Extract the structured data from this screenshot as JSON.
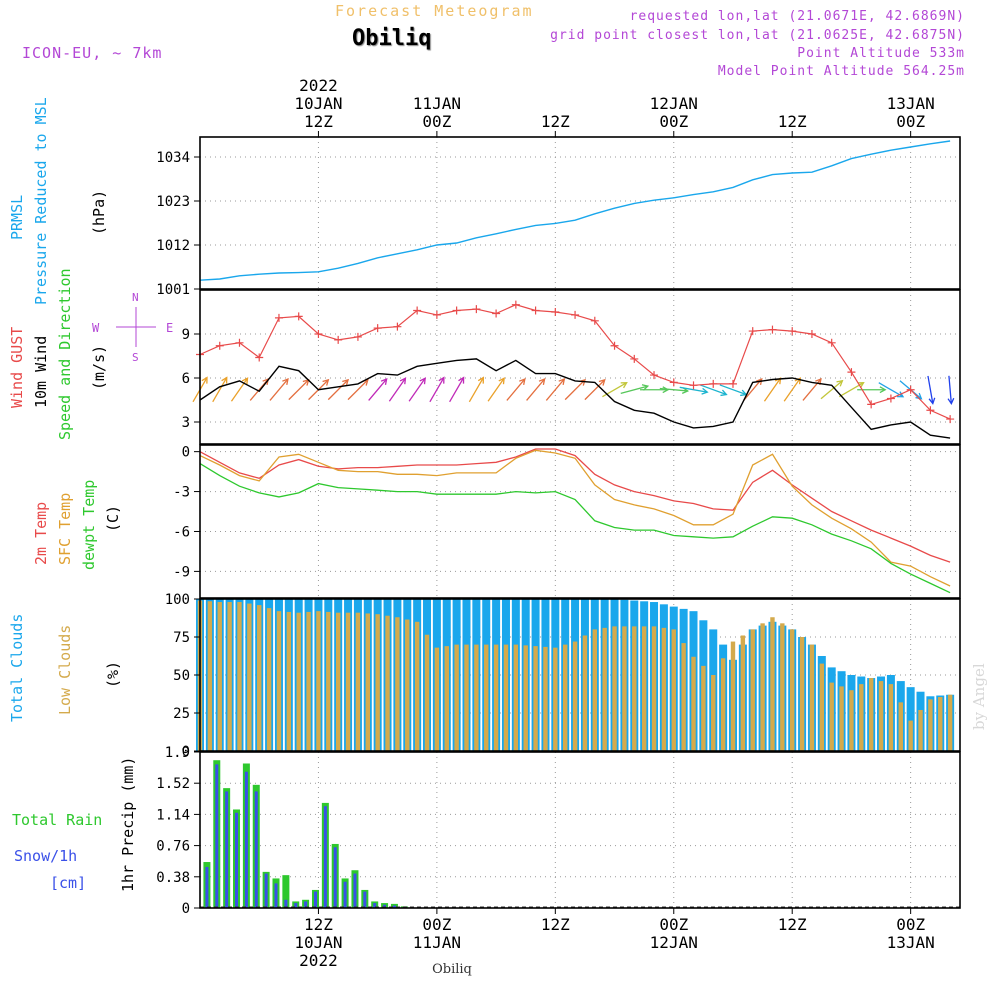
{
  "header": {
    "title": "Forecast Meteogram",
    "location": "Obiliq",
    "model": "ICON-EU, ~ 7km",
    "requested": "requested lon,lat (21.0671E, 42.6869N)",
    "gridpoint": "grid point closest lon,lat (21.0625E, 42.6875N)",
    "point_altitude": "Point Altitude 533m",
    "model_altitude": "Model Point Altitude 564.25m",
    "credit": "by Angel",
    "footer_location": "Obiliq"
  },
  "time_axis": {
    "top_year": "2022",
    "bottom_year": "2022",
    "ticks": [
      {
        "hour": 12,
        "label": "12Z",
        "date": "10JAN"
      },
      {
        "hour": 24,
        "label": "00Z",
        "date": "11JAN"
      },
      {
        "hour": 36,
        "label": "12Z",
        "date": ""
      },
      {
        "hour": 48,
        "label": "00Z",
        "date": "12JAN"
      },
      {
        "hour": 60,
        "label": "12Z",
        "date": ""
      },
      {
        "hour": 72,
        "label": "00Z",
        "date": "13JAN"
      }
    ],
    "range_hours": [
      0,
      77
    ]
  },
  "chart_data": [
    {
      "type": "line",
      "panel": "pressure",
      "ylabel_lines": [
        "PRMSL",
        "Pressure Reduced to MSL"
      ],
      "unit": "(hPa)",
      "ylim": [
        1001,
        1039
      ],
      "yticks": [
        1001,
        1012,
        1023,
        1034
      ],
      "x": [
        0,
        2,
        4,
        6,
        8,
        10,
        12,
        14,
        16,
        18,
        20,
        22,
        24,
        26,
        28,
        30,
        32,
        34,
        36,
        38,
        40,
        42,
        44,
        46,
        48,
        50,
        52,
        54,
        56,
        58,
        60,
        62,
        64,
        66,
        68,
        70,
        72,
        74,
        76
      ],
      "series": [
        {
          "color": "#1aa7ec",
          "values": [
            1003.2,
            1003.5,
            1004.3,
            1004.7,
            1005.0,
            1005.1,
            1005.3,
            1006.2,
            1007.4,
            1008.8,
            1009.8,
            1010.8,
            1012.0,
            1012.5,
            1013.8,
            1014.8,
            1015.9,
            1016.9,
            1017.4,
            1018.2,
            1019.8,
            1021.2,
            1022.4,
            1023.2,
            1023.8,
            1024.6,
            1025.3,
            1026.4,
            1028.3,
            1029.6,
            1030.0,
            1030.2,
            1031.8,
            1033.6,
            1034.7,
            1035.7,
            1036.5,
            1037.3,
            1038.0
          ]
        }
      ]
    },
    {
      "type": "line",
      "panel": "wind",
      "ylabel_lines": [
        "Wind GUST",
        "10m Wind",
        "Speed and Direction"
      ],
      "unit": "(m/s)",
      "compass": [
        "N",
        "W",
        "E",
        "S"
      ],
      "ylim": [
        1.5,
        12
      ],
      "yticks": [
        3,
        6,
        9
      ],
      "x": [
        0,
        2,
        4,
        6,
        8,
        10,
        12,
        14,
        16,
        18,
        20,
        22,
        24,
        26,
        28,
        30,
        32,
        34,
        36,
        38,
        40,
        42,
        44,
        46,
        48,
        50,
        52,
        54,
        56,
        58,
        60,
        62,
        64,
        66,
        68,
        70,
        72,
        74,
        76
      ],
      "series": [
        {
          "name": "Wind GUST",
          "color": "#e84a4a",
          "values": [
            7.6,
            8.2,
            8.4,
            7.4,
            10.1,
            10.2,
            9.0,
            8.6,
            8.8,
            9.4,
            9.5,
            10.6,
            10.3,
            10.6,
            10.7,
            10.4,
            11.0,
            10.6,
            10.5,
            10.3,
            9.9,
            8.2,
            7.3,
            6.2,
            5.7,
            5.5,
            5.6,
            5.6,
            9.2,
            9.3,
            9.2,
            9.0,
            8.4,
            6.4,
            4.2,
            4.6,
            5.2,
            3.8,
            3.2
          ]
        },
        {
          "name": "10m Wind",
          "color": "#000000",
          "values": [
            4.5,
            5.4,
            5.8,
            5.1,
            6.8,
            6.5,
            5.2,
            5.4,
            5.6,
            6.3,
            6.2,
            6.8,
            7.0,
            7.2,
            7.3,
            6.5,
            7.2,
            6.3,
            6.3,
            5.8,
            5.7,
            4.4,
            3.8,
            3.6,
            3.0,
            2.6,
            2.7,
            3.0,
            5.7,
            5.9,
            6.0,
            5.7,
            5.5,
            4.0,
            2.5,
            2.8,
            3.0,
            2.1,
            1.9
          ]
        }
      ],
      "wind_dir_deg": [
        30,
        30,
        35,
        40,
        40,
        45,
        45,
        45,
        45,
        40,
        35,
        35,
        30,
        30,
        30,
        35,
        40,
        40,
        40,
        45,
        45,
        60,
        75,
        90,
        95,
        100,
        110,
        110,
        40,
        35,
        35,
        40,
        50,
        60,
        90,
        120,
        130,
        170,
        175
      ]
    },
    {
      "type": "line",
      "panel": "temperature",
      "ylabel_lines": [
        "2m Temp",
        "SFC Temp",
        "dewpt Temp"
      ],
      "unit": "(C)",
      "ylim": [
        -11,
        0.5
      ],
      "yticks": [
        0,
        -3,
        -6,
        -9
      ],
      "x": [
        0,
        2,
        4,
        6,
        8,
        10,
        12,
        14,
        16,
        18,
        20,
        22,
        24,
        26,
        28,
        30,
        32,
        34,
        36,
        38,
        40,
        42,
        44,
        46,
        48,
        50,
        52,
        54,
        56,
        58,
        60,
        62,
        64,
        66,
        68,
        70,
        72,
        74,
        76
      ],
      "series": [
        {
          "name": "2m Temp",
          "color": "#e84a4a",
          "values": [
            0.0,
            -0.8,
            -1.6,
            -2.0,
            -1.0,
            -0.6,
            -1.1,
            -1.3,
            -1.2,
            -1.2,
            -1.1,
            -1.0,
            -1.0,
            -1.0,
            -0.9,
            -0.8,
            -0.4,
            0.2,
            0.2,
            -0.3,
            -1.7,
            -2.5,
            -3.0,
            -3.3,
            -3.7,
            -3.9,
            -4.3,
            -4.4,
            -2.3,
            -1.4,
            -2.5,
            -3.5,
            -4.5,
            -5.2,
            -5.9,
            -6.5,
            -7.1,
            -7.8,
            -8.3
          ]
        },
        {
          "name": "SFC Temp",
          "color": "#e0a030",
          "values": [
            -0.3,
            -1.0,
            -1.8,
            -2.2,
            -0.4,
            -0.2,
            -0.8,
            -1.4,
            -1.5,
            -1.5,
            -1.7,
            -1.7,
            -1.8,
            -1.6,
            -1.6,
            -1.6,
            -0.5,
            0.1,
            -0.1,
            -0.5,
            -2.5,
            -3.6,
            -4.0,
            -4.3,
            -4.8,
            -5.5,
            -5.5,
            -4.7,
            -1.0,
            -0.2,
            -2.6,
            -4.0,
            -5.0,
            -5.8,
            -6.8,
            -8.3,
            -8.6,
            -9.4,
            -10.1
          ]
        },
        {
          "name": "dewpt Temp",
          "color": "#2ec82e",
          "values": [
            -0.9,
            -1.8,
            -2.6,
            -3.1,
            -3.4,
            -3.1,
            -2.4,
            -2.7,
            -2.8,
            -2.9,
            -3.0,
            -3.0,
            -3.2,
            -3.2,
            -3.2,
            -3.2,
            -3.0,
            -3.1,
            -3.0,
            -3.6,
            -5.2,
            -5.7,
            -5.9,
            -5.9,
            -6.3,
            -6.4,
            -6.5,
            -6.4,
            -5.6,
            -4.9,
            -5.0,
            -5.5,
            -6.2,
            -6.7,
            -7.3,
            -8.4,
            -9.2,
            -9.9,
            -10.6
          ]
        }
      ]
    },
    {
      "type": "bar",
      "panel": "clouds",
      "ylabel_lines": [
        "Total Clouds",
        "Low Clouds"
      ],
      "unit": "(%)",
      "ylim": [
        0,
        100
      ],
      "yticks": [
        100,
        75,
        50,
        25,
        0
      ],
      "x": [
        0,
        2,
        4,
        6,
        8,
        10,
        12,
        14,
        16,
        18,
        20,
        22,
        24,
        26,
        28,
        30,
        32,
        34,
        36,
        38,
        40,
        42,
        44,
        46,
        48,
        50,
        52,
        54,
        56,
        58,
        60,
        62,
        64,
        66,
        68,
        70,
        72,
        74,
        76
      ],
      "series": [
        {
          "name": "Total Clouds",
          "color": "#1aa7ec",
          "values": [
            100,
            100,
            100,
            100,
            100,
            100,
            100,
            100,
            100,
            100,
            100,
            100,
            100,
            100,
            100,
            100,
            100,
            100,
            100,
            100,
            100,
            100,
            99,
            98,
            95,
            92,
            80,
            60,
            80,
            85,
            80,
            70,
            55,
            50,
            48,
            50,
            42,
            36,
            37
          ]
        },
        {
          "name": "Low Clouds",
          "color": "#d4aa4c",
          "values": [
            99,
            98,
            98,
            96,
            92,
            91,
            92,
            91,
            91,
            90,
            88,
            85,
            68,
            70,
            70,
            70,
            70,
            69,
            68,
            72,
            80,
            82,
            82,
            82,
            80,
            62,
            50,
            72,
            80,
            88,
            80,
            70,
            45,
            40,
            48,
            44,
            20,
            34,
            37
          ]
        }
      ]
    },
    {
      "type": "bar",
      "panel": "precip",
      "ylabel_lines": [
        "Total   Rain",
        "Snow/1h",
        "[cm]"
      ],
      "unit": "1hr Precip (mm)",
      "ylim": [
        0,
        1.9
      ],
      "yticks": [
        0,
        0.38,
        0.76,
        1.14,
        1.52,
        1.9
      ],
      "x": [
        0,
        1,
        2,
        3,
        4,
        5,
        6,
        7,
        8,
        9,
        10,
        11,
        12,
        13,
        14,
        15,
        16,
        17,
        18,
        19,
        20
      ],
      "series": [
        {
          "name": "Total Rain",
          "color": "#2ec82e",
          "values": [
            0.56,
            1.8,
            1.46,
            1.2,
            1.76,
            1.5,
            0.44,
            0.36,
            0.4,
            0.08,
            0.1,
            0.22,
            1.28,
            0.78,
            0.36,
            0.46,
            0.22,
            0.08,
            0.06,
            0.05,
            0.02
          ]
        },
        {
          "name": "Snow/1h",
          "color": "#3a50e8",
          "values": [
            0.5,
            1.75,
            1.42,
            1.16,
            1.66,
            1.42,
            0.42,
            0.3,
            0.1,
            0.06,
            0.08,
            0.2,
            1.24,
            0.74,
            0.32,
            0.42,
            0.2,
            0.06,
            0.04,
            0.03,
            0.01
          ]
        }
      ]
    }
  ]
}
